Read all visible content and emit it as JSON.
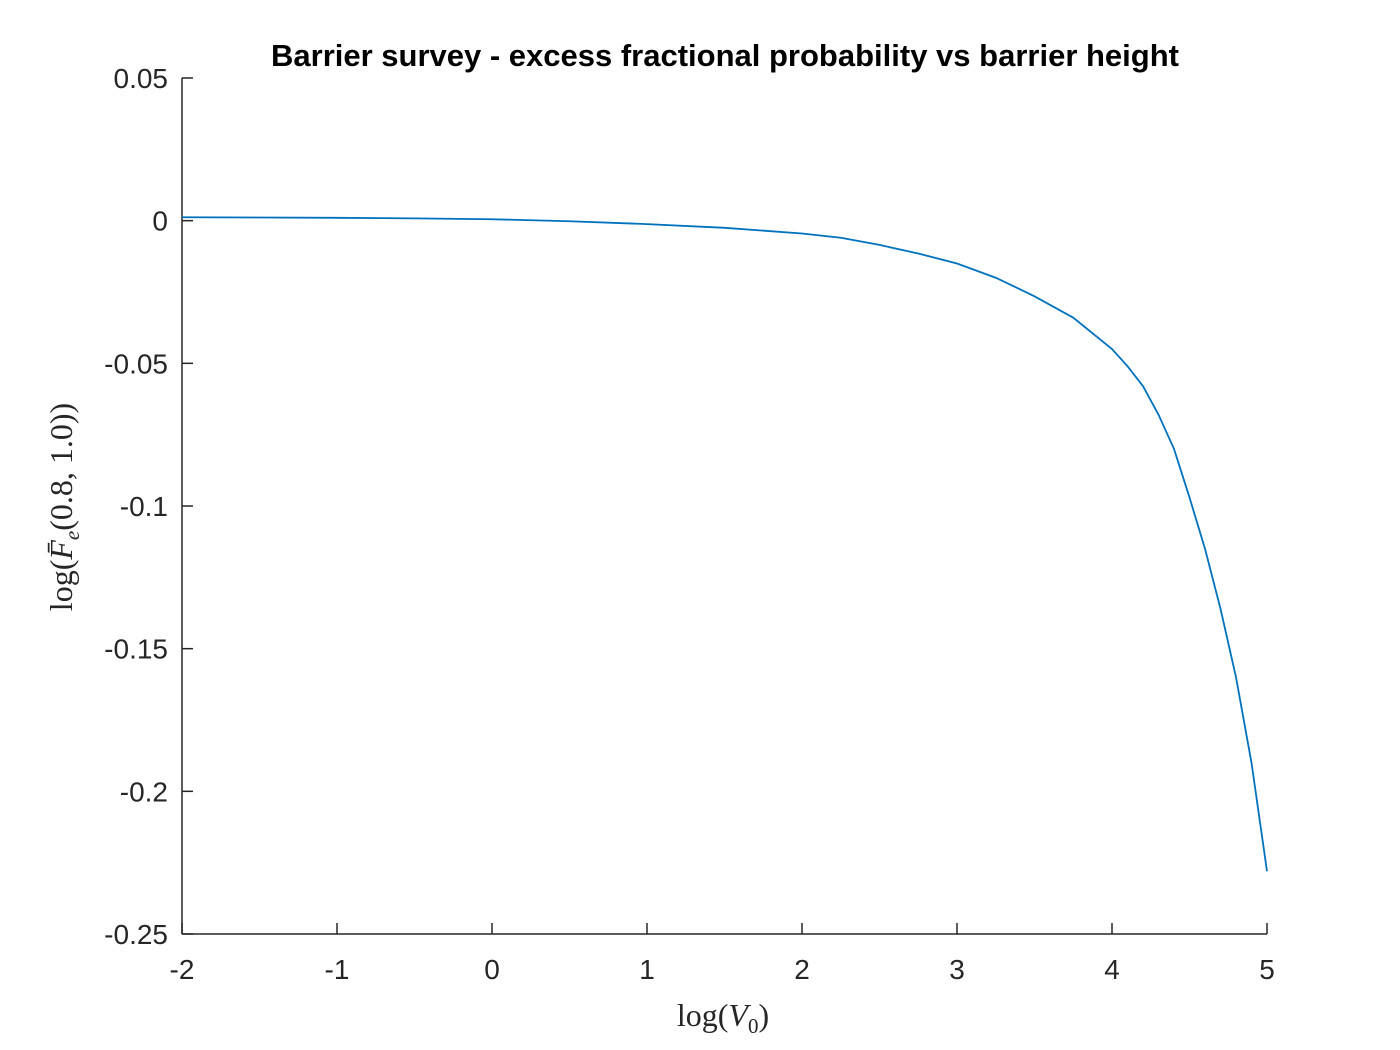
{
  "chart_data": {
    "type": "line",
    "title": "Barrier survey - excess fractional probability vs barrier height",
    "xlabel_parts": {
      "pre": "log(",
      "var": "V",
      "sub": "0",
      "post": ")"
    },
    "ylabel_parts": {
      "pre": "log(",
      "var": "F̄",
      "sub": "e",
      "post": "(0.8, 1.0))"
    },
    "xlim": [
      -2,
      5
    ],
    "ylim": [
      -0.25,
      0.05
    ],
    "xticks": [
      -2,
      -1,
      0,
      1,
      2,
      3,
      4,
      5
    ],
    "xtick_labels": [
      "-2",
      "-1",
      "0",
      "1",
      "2",
      "3",
      "4",
      "5"
    ],
    "yticks": [
      0.05,
      0,
      -0.05,
      -0.1,
      -0.15,
      -0.2,
      -0.25
    ],
    "ytick_labels": [
      "0.05",
      "0",
      "-0.05",
      "-0.1",
      "-0.15",
      "-0.2",
      "-0.25"
    ],
    "grid": false,
    "series": [
      {
        "color": "#0072BD",
        "x": [
          -2,
          -1.5,
          -1,
          -0.5,
          0,
          0.5,
          1,
          1.5,
          2,
          2.25,
          2.5,
          2.75,
          3,
          3.25,
          3.5,
          3.75,
          4,
          4.1,
          4.2,
          4.3,
          4.4,
          4.5,
          4.6,
          4.7,
          4.8,
          4.9,
          5
        ],
        "y": [
          0.0012,
          0.0011,
          0.001,
          0.0008,
          0.0005,
          -0.0002,
          -0.0012,
          -0.0025,
          -0.0045,
          -0.006,
          -0.0085,
          -0.0115,
          -0.015,
          -0.02,
          -0.0265,
          -0.034,
          -0.045,
          -0.051,
          -0.058,
          -0.068,
          -0.08,
          -0.097,
          -0.115,
          -0.136,
          -0.16,
          -0.19,
          -0.228
        ]
      }
    ]
  }
}
